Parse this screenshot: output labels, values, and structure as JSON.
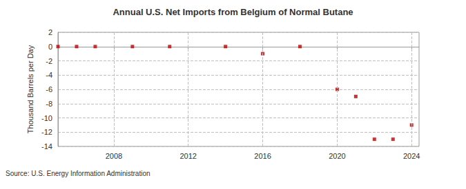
{
  "chart_data": {
    "type": "scatter",
    "title": "Annual U.S. Net Imports from Belgium of Normal Butane",
    "y_label": "Thousand Barrels per Day",
    "annotations": [
      "Source: U.S. Energy Information Administration"
    ],
    "x": [
      2005,
      2006,
      2007,
      2009,
      2011,
      2014,
      2016,
      2018,
      2020,
      2021,
      2022,
      2023,
      2024
    ],
    "values": [
      0,
      0,
      0,
      0,
      0,
      0,
      -1,
      0,
      -6,
      -7,
      -13,
      -13,
      -11
    ],
    "color": "#c00000",
    "marker": "square",
    "xlim": [
      2005,
      2024.4
    ],
    "xticks": [
      2008,
      2012,
      2016,
      2020,
      2024
    ],
    "ylim": [
      -14,
      2
    ],
    "yticks": [
      -14,
      -12,
      -10,
      -8,
      -6,
      -4,
      -2,
      0,
      2
    ],
    "grid": true
  }
}
